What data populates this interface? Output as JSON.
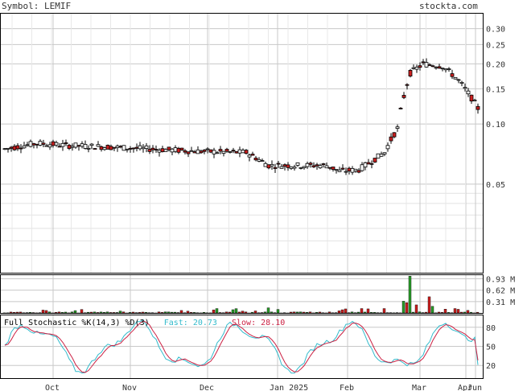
{
  "header": {
    "symbol_label": "Symbol:",
    "symbol": "LEMIF",
    "site": "stockta.com"
  },
  "colors": {
    "up": "#ffffff",
    "down": "#cc1f1f",
    "volume": "#2a9d2a",
    "fast": "#33bbcc",
    "slow": "#cc2244",
    "grid": "#c8c8c8",
    "frame": "#000000"
  },
  "chart_data": [
    {
      "type": "candlestick",
      "title": "",
      "price_axis": {
        "scale": "log",
        "ylim": [
          0.018,
          0.36
        ],
        "ticks": [
          "0.30",
          "0.25",
          "0.20",
          "0.15",
          "0.10",
          "0.05"
        ]
      },
      "month_labels": [
        "Oct",
        "Nov",
        "Dec",
        "Jan 2025",
        "Feb",
        "Mar",
        "Apr",
        "Jun"
      ],
      "month_starts": [
        0.11,
        0.27,
        0.43,
        0.575,
        0.72,
        0.87,
        0.965,
        0.985
      ],
      "last_close": 0.12,
      "volume": {
        "ticks": [
          "0.93 M",
          "0.62 M",
          "0.31 M"
        ],
        "max": 1.05
      }
    },
    {
      "type": "line",
      "title": "Full Stochastic %K(14,3) %D(3)",
      "fast_label": "Fast:",
      "fast_value": "20.73",
      "slow_label": "Slow:",
      "slow_value": "28.10",
      "ylim": [
        0,
        100
      ],
      "ticks": [
        "80",
        "50",
        "20"
      ]
    }
  ]
}
